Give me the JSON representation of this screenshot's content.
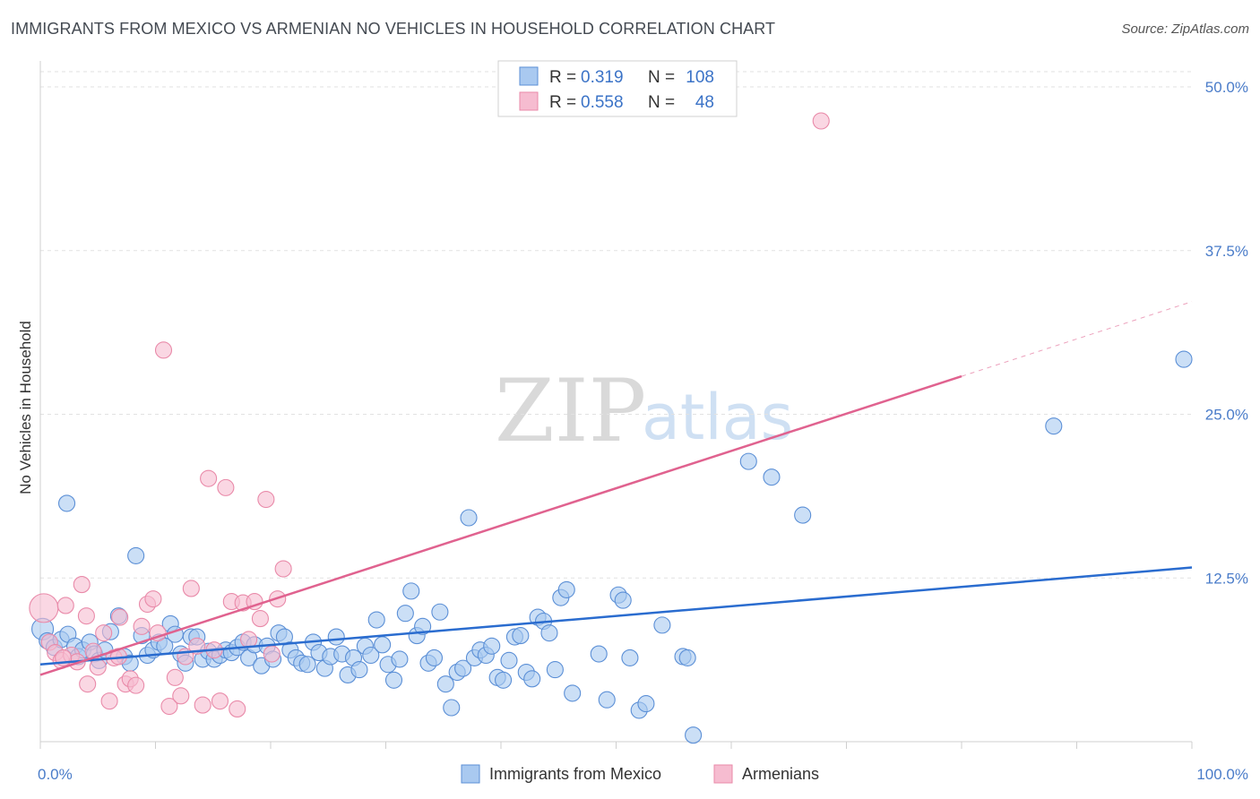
{
  "title": "IMMIGRANTS FROM MEXICO VS ARMENIAN NO VEHICLES IN HOUSEHOLD CORRELATION CHART",
  "source": "Source: ZipAtlas.com",
  "watermark": {
    "zip": "ZIP",
    "atlas": "atlas"
  },
  "colors": {
    "blue_fill": "#a9c9f0",
    "blue_stroke": "#5b8fd6",
    "blue_line": "#2a6ccf",
    "pink_fill": "#f6bcd0",
    "pink_stroke": "#e98aa9",
    "pink_line": "#e0628f",
    "grid": "#e2e2e2",
    "tick_text": "#4a7cc9"
  },
  "legend": {
    "rows": [
      {
        "r_label": "R =",
        "r_value": "0.319",
        "n_label": "N =",
        "n_value": "108"
      },
      {
        "r_label": "R =",
        "r_value": "0.558",
        "n_label": "N =",
        "n_value": "48"
      }
    ]
  },
  "chart_data": {
    "type": "scatter",
    "title": "IMMIGRANTS FROM MEXICO VS ARMENIAN NO VEHICLES IN HOUSEHOLD CORRELATION CHART",
    "xlabel": "",
    "ylabel": "No Vehicles in Household",
    "xlim": [
      0,
      100
    ],
    "ylim": [
      0,
      50
    ],
    "x_tick_labels": [
      "0.0%",
      "100.0%"
    ],
    "y_ticks": [
      12.5,
      25.0,
      37.5,
      50.0
    ],
    "y_tick_labels": [
      "12.5%",
      "25.0%",
      "37.5%",
      "50.0%"
    ],
    "grid": true,
    "legend_position": "top-center",
    "series": [
      {
        "name": "Immigrants from Mexico",
        "R": 0.319,
        "N": 108,
        "trend": {
          "x0": 0,
          "y0": 5.9,
          "x1": 100,
          "y1": 13.3
        },
        "points": [
          [
            0.2,
            8.6
          ],
          [
            0.6,
            7.7
          ],
          [
            1.2,
            7.2
          ],
          [
            1.8,
            7.8
          ],
          [
            2.3,
            18.2
          ],
          [
            2.4,
            8.2
          ],
          [
            3.0,
            7.3
          ],
          [
            3.3,
            6.5
          ],
          [
            3.7,
            7.0
          ],
          [
            4.3,
            7.6
          ],
          [
            4.7,
            6.7
          ],
          [
            5.1,
            6.2
          ],
          [
            5.6,
            7.0
          ],
          [
            6.1,
            8.4
          ],
          [
            6.8,
            9.6
          ],
          [
            7.3,
            6.5
          ],
          [
            7.8,
            6.0
          ],
          [
            8.3,
            14.2
          ],
          [
            8.8,
            8.1
          ],
          [
            9.3,
            6.6
          ],
          [
            9.8,
            7.0
          ],
          [
            10.3,
            7.6
          ],
          [
            10.8,
            7.3
          ],
          [
            11.3,
            9.0
          ],
          [
            11.7,
            8.2
          ],
          [
            12.2,
            6.7
          ],
          [
            12.6,
            6.0
          ],
          [
            13.1,
            8.0
          ],
          [
            13.6,
            8.0
          ],
          [
            14.1,
            6.3
          ],
          [
            14.6,
            6.9
          ],
          [
            15.1,
            6.3
          ],
          [
            15.6,
            6.6
          ],
          [
            16.1,
            7.0
          ],
          [
            16.6,
            6.8
          ],
          [
            17.1,
            7.2
          ],
          [
            17.6,
            7.6
          ],
          [
            18.1,
            6.4
          ],
          [
            18.6,
            7.4
          ],
          [
            19.2,
            5.8
          ],
          [
            19.7,
            7.3
          ],
          [
            20.2,
            6.3
          ],
          [
            20.7,
            8.3
          ],
          [
            21.2,
            8.0
          ],
          [
            21.7,
            7.0
          ],
          [
            22.2,
            6.4
          ],
          [
            22.7,
            6.0
          ],
          [
            23.2,
            5.9
          ],
          [
            23.7,
            7.6
          ],
          [
            24.2,
            6.8
          ],
          [
            24.7,
            5.6
          ],
          [
            25.2,
            6.5
          ],
          [
            25.7,
            8.0
          ],
          [
            26.2,
            6.7
          ],
          [
            26.7,
            5.1
          ],
          [
            27.2,
            6.4
          ],
          [
            27.7,
            5.5
          ],
          [
            28.2,
            7.3
          ],
          [
            28.7,
            6.6
          ],
          [
            29.2,
            9.3
          ],
          [
            29.7,
            7.4
          ],
          [
            30.2,
            5.9
          ],
          [
            30.7,
            4.7
          ],
          [
            31.2,
            6.3
          ],
          [
            31.7,
            9.8
          ],
          [
            32.2,
            11.5
          ],
          [
            32.7,
            8.1
          ],
          [
            33.2,
            8.8
          ],
          [
            33.7,
            6.0
          ],
          [
            34.2,
            6.4
          ],
          [
            34.7,
            9.9
          ],
          [
            35.2,
            4.4
          ],
          [
            35.7,
            2.6
          ],
          [
            36.2,
            5.3
          ],
          [
            36.7,
            5.6
          ],
          [
            37.2,
            17.1
          ],
          [
            37.7,
            6.4
          ],
          [
            38.2,
            7.0
          ],
          [
            38.7,
            6.6
          ],
          [
            39.2,
            7.3
          ],
          [
            39.7,
            4.9
          ],
          [
            40.2,
            4.7
          ],
          [
            40.7,
            6.2
          ],
          [
            41.2,
            8.0
          ],
          [
            41.7,
            8.1
          ],
          [
            42.2,
            5.3
          ],
          [
            42.7,
            4.8
          ],
          [
            43.2,
            9.5
          ],
          [
            43.7,
            9.2
          ],
          [
            44.2,
            8.3
          ],
          [
            44.7,
            5.5
          ],
          [
            45.2,
            11.0
          ],
          [
            45.7,
            11.6
          ],
          [
            46.2,
            3.7
          ],
          [
            48.5,
            6.7
          ],
          [
            49.2,
            3.2
          ],
          [
            50.2,
            11.2
          ],
          [
            50.6,
            10.8
          ],
          [
            51.2,
            6.4
          ],
          [
            52.0,
            2.4
          ],
          [
            52.6,
            2.9
          ],
          [
            54.0,
            8.9
          ],
          [
            55.8,
            6.5
          ],
          [
            56.7,
            0.5
          ],
          [
            61.5,
            21.4
          ],
          [
            63.5,
            20.2
          ],
          [
            66.2,
            17.3
          ],
          [
            88.0,
            24.1
          ],
          [
            99.3,
            29.2
          ],
          [
            56.2,
            6.4
          ]
        ]
      },
      {
        "name": "Armenians",
        "R": 0.558,
        "N": 48,
        "trend": {
          "x0": 0,
          "y0": 5.1,
          "x1": 80,
          "y1": 27.9,
          "dash_to_x": 100,
          "dash_to_y": 33.6
        },
        "points": [
          [
            0.3,
            10.2
          ],
          [
            0.8,
            7.6
          ],
          [
            1.3,
            6.8
          ],
          [
            1.8,
            6.2
          ],
          [
            2.2,
            10.4
          ],
          [
            2.7,
            6.6
          ],
          [
            3.2,
            6.1
          ],
          [
            3.6,
            12.0
          ],
          [
            4.1,
            4.4
          ],
          [
            4.6,
            6.9
          ],
          [
            5.0,
            5.7
          ],
          [
            5.5,
            8.3
          ],
          [
            6.0,
            3.1
          ],
          [
            6.4,
            6.4
          ],
          [
            6.9,
            9.5
          ],
          [
            7.4,
            4.4
          ],
          [
            7.8,
            4.8
          ],
          [
            8.3,
            4.3
          ],
          [
            8.8,
            8.8
          ],
          [
            9.3,
            10.5
          ],
          [
            9.8,
            10.9
          ],
          [
            10.2,
            8.3
          ],
          [
            10.7,
            29.9
          ],
          [
            11.2,
            2.7
          ],
          [
            11.7,
            4.9
          ],
          [
            12.2,
            3.5
          ],
          [
            12.6,
            6.5
          ],
          [
            13.1,
            11.7
          ],
          [
            13.6,
            7.3
          ],
          [
            14.1,
            2.8
          ],
          [
            14.6,
            20.1
          ],
          [
            15.1,
            7.0
          ],
          [
            15.6,
            3.1
          ],
          [
            16.1,
            19.4
          ],
          [
            16.6,
            10.7
          ],
          [
            17.1,
            2.5
          ],
          [
            17.6,
            10.6
          ],
          [
            18.1,
            7.8
          ],
          [
            18.6,
            10.7
          ],
          [
            19.1,
            9.4
          ],
          [
            19.6,
            18.5
          ],
          [
            20.1,
            6.7
          ],
          [
            20.6,
            10.9
          ],
          [
            21.1,
            13.2
          ],
          [
            67.8,
            47.4
          ],
          [
            2.0,
            6.4
          ],
          [
            4.0,
            9.6
          ],
          [
            6.8,
            6.5
          ]
        ]
      }
    ]
  },
  "bottom_legend": [
    "Immigrants from Mexico",
    "Armenians"
  ]
}
